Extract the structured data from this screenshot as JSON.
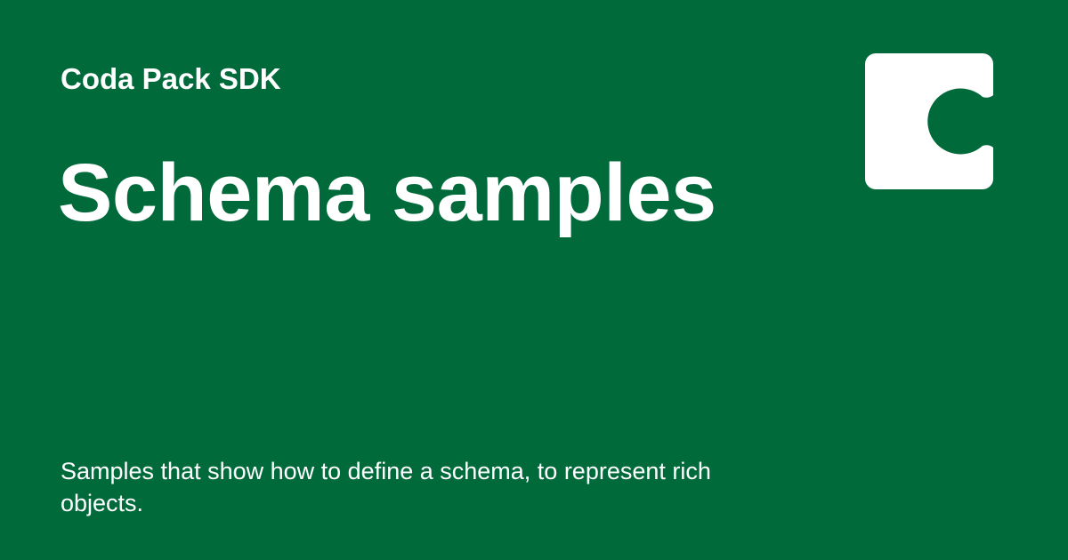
{
  "brand": {
    "name": "Coda Pack SDK",
    "logo_icon": "coda-logo-icon",
    "background_color": "#006a3b",
    "foreground_color": "#ffffff"
  },
  "page": {
    "title": "Schema samples",
    "description": "Samples that show how to define a schema, to represent rich objects."
  }
}
